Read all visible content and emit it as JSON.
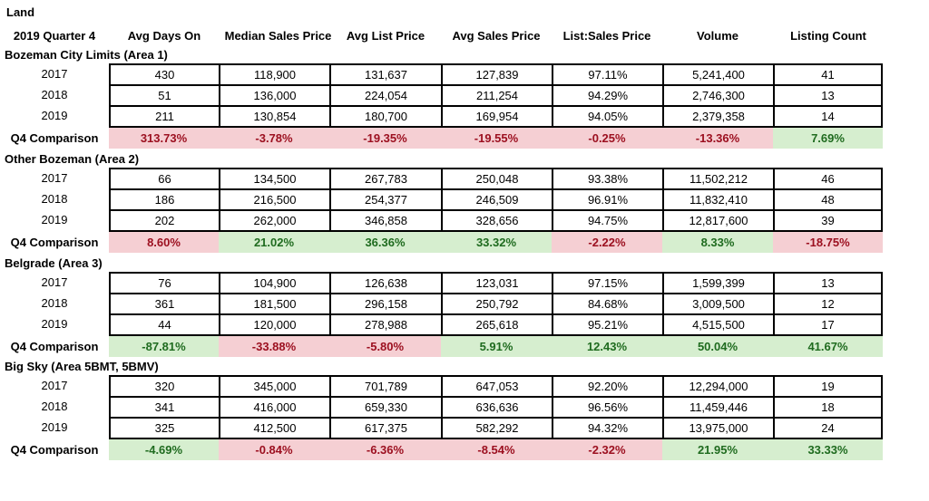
{
  "title": "Land",
  "headers": [
    "2019 Quarter 4",
    "Avg Days On",
    "Median Sales Price",
    "Avg List Price",
    "Avg Sales Price",
    "List:Sales Price",
    "Volume",
    "Listing Count"
  ],
  "sections": [
    {
      "name": "Bozeman City Limits (Area 1)",
      "rows": [
        {
          "label": "2017",
          "values": [
            "430",
            "118,900",
            "131,637",
            "127,839",
            "97.11%",
            "5,241,400",
            "41"
          ]
        },
        {
          "label": "2018",
          "values": [
            "51",
            "136,000",
            "224,054",
            "211,254",
            "94.29%",
            "2,746,300",
            "13"
          ]
        },
        {
          "label": "2019",
          "values": [
            "211",
            "130,854",
            "180,700",
            "169,954",
            "94.05%",
            "2,379,358",
            "14"
          ]
        }
      ],
      "comparison": {
        "label": "Q4 Comparison",
        "values": [
          "313.73%",
          "-3.78%",
          "-19.35%",
          "-19.55%",
          "-0.25%",
          "-13.36%",
          "7.69%"
        ],
        "status": [
          "neg",
          "neg",
          "neg",
          "neg",
          "neg",
          "neg",
          "pos"
        ]
      }
    },
    {
      "name": "Other Bozeman (Area 2)",
      "rows": [
        {
          "label": "2017",
          "values": [
            "66",
            "134,500",
            "267,783",
            "250,048",
            "93.38%",
            "11,502,212",
            "46"
          ]
        },
        {
          "label": "2018",
          "values": [
            "186",
            "216,500",
            "254,377",
            "246,509",
            "96.91%",
            "11,832,410",
            "48"
          ]
        },
        {
          "label": "2019",
          "values": [
            "202",
            "262,000",
            "346,858",
            "328,656",
            "94.75%",
            "12,817,600",
            "39"
          ]
        }
      ],
      "comparison": {
        "label": "Q4 Comparison",
        "values": [
          "8.60%",
          "21.02%",
          "36.36%",
          "33.32%",
          "-2.22%",
          "8.33%",
          "-18.75%"
        ],
        "status": [
          "neg",
          "pos",
          "pos",
          "pos",
          "neg",
          "pos",
          "neg"
        ]
      }
    },
    {
      "name": "Belgrade (Area 3)",
      "rows": [
        {
          "label": "2017",
          "values": [
            "76",
            "104,900",
            "126,638",
            "123,031",
            "97.15%",
            "1,599,399",
            "13"
          ]
        },
        {
          "label": "2018",
          "values": [
            "361",
            "181,500",
            "296,158",
            "250,792",
            "84.68%",
            "3,009,500",
            "12"
          ]
        },
        {
          "label": "2019",
          "values": [
            "44",
            "120,000",
            "278,988",
            "265,618",
            "95.21%",
            "4,515,500",
            "17"
          ]
        }
      ],
      "comparison": {
        "label": "Q4 Comparison",
        "values": [
          "-87.81%",
          "-33.88%",
          "-5.80%",
          "5.91%",
          "12.43%",
          "50.04%",
          "41.67%"
        ],
        "status": [
          "pos",
          "neg",
          "neg",
          "pos",
          "pos",
          "pos",
          "pos"
        ]
      }
    },
    {
      "name": "Big Sky (Area 5BMT, 5BMV)",
      "rows": [
        {
          "label": "2017",
          "values": [
            "320",
            "345,000",
            "701,789",
            "647,053",
            "92.20%",
            "12,294,000",
            "19"
          ]
        },
        {
          "label": "2018",
          "values": [
            "341",
            "416,000",
            "659,330",
            "636,636",
            "96.56%",
            "11,459,446",
            "18"
          ]
        },
        {
          "label": "2019",
          "values": [
            "325",
            "412,500",
            "617,375",
            "582,292",
            "94.32%",
            "13,975,000",
            "24"
          ]
        }
      ],
      "comparison": {
        "label": "Q4 Comparison",
        "values": [
          "-4.69%",
          "-0.84%",
          "-6.36%",
          "-8.54%",
          "-2.32%",
          "21.95%",
          "33.33%"
        ],
        "status": [
          "pos",
          "neg",
          "neg",
          "neg",
          "neg",
          "pos",
          "pos"
        ]
      }
    }
  ],
  "colors": {
    "positive_bg": "#d6eecf",
    "positive_text": "#1f6b1f",
    "negative_bg": "#f5cfd3",
    "negative_text": "#9c1020"
  }
}
